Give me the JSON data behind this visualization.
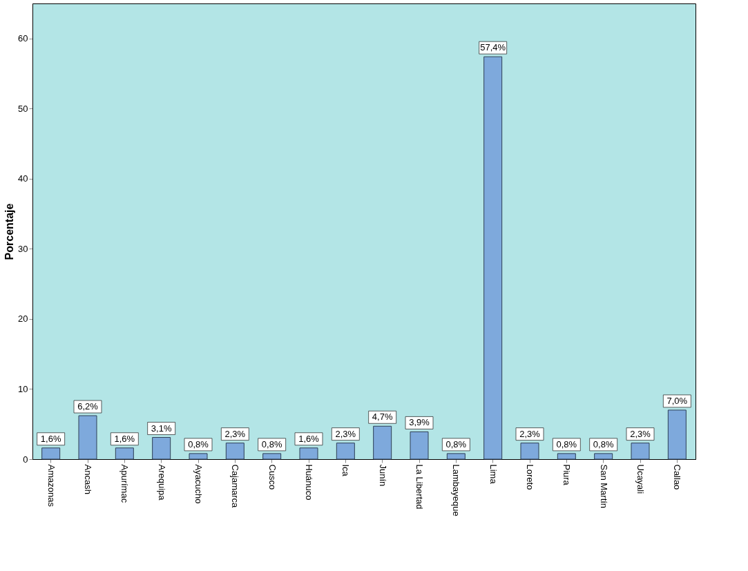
{
  "chart_data": {
    "type": "bar",
    "ylabel": "Porcentaje",
    "categories": [
      "Amazonas",
      "Ancash",
      "Apurímac",
      "Arequipa",
      "Ayacucho",
      "Cajamarca",
      "Cusco",
      "Huánuco",
      "Ica",
      "Junín",
      "La Libertad",
      "Lambayeque",
      "Lima",
      "Loreto",
      "Piura",
      "San Martín",
      "Ucayali",
      "Callao"
    ],
    "values": [
      1.6,
      6.2,
      1.6,
      3.1,
      0.8,
      2.3,
      0.8,
      1.6,
      2.3,
      4.7,
      3.9,
      0.8,
      57.4,
      2.3,
      0.8,
      0.8,
      2.3,
      7.0
    ],
    "value_labels": [
      "1,6%",
      "6,2%",
      "1,6%",
      "3,1%",
      "0,8%",
      "2,3%",
      "0,8%",
      "1,6%",
      "2,3%",
      "4,7%",
      "3,9%",
      "0,8%",
      "57,4%",
      "2,3%",
      "0,8%",
      "0,8%",
      "2,3%",
      "7,0%"
    ],
    "color": "#7ea9dc",
    "ylim": [
      0,
      65
    ],
    "yticks": [
      0,
      10,
      20,
      30,
      40,
      50,
      60
    ],
    "grid": false
  }
}
